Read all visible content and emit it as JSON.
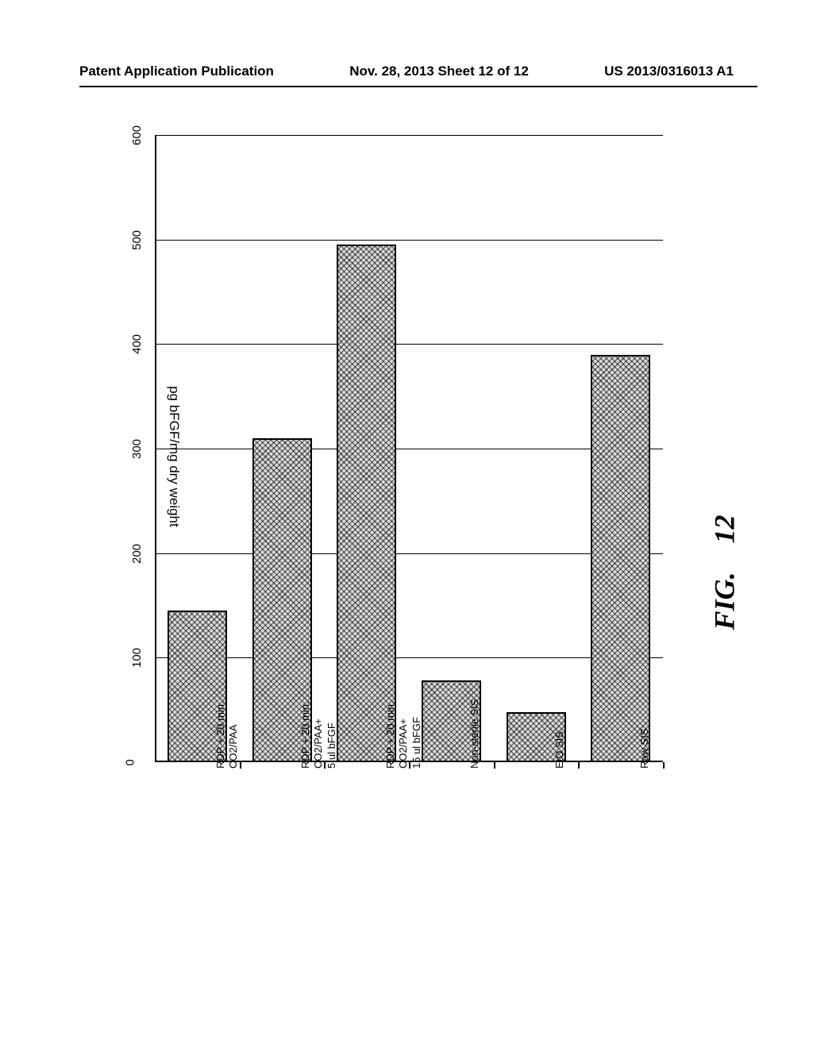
{
  "header": {
    "left": "Patent Application Publication",
    "center": "Nov. 28, 2013  Sheet 12 of 12",
    "right": "US 2013/0316013 A1"
  },
  "chart": {
    "type": "bar",
    "orientation": "horizontal_rotated",
    "y_axis_label": "pg bFGF/mg dry weight",
    "y_min": 0,
    "y_max": 600,
    "y_tick_step": 100,
    "y_ticks": [
      0,
      100,
      200,
      300,
      400,
      500,
      600
    ],
    "categories": [
      {
        "lines": [
          "RDP + 20 min.",
          "CO2/PAA"
        ],
        "value": 145
      },
      {
        "lines": [
          "RDP + 20 min.",
          "CO2/PAA+",
          "5 ul bFGF"
        ],
        "value": 310
      },
      {
        "lines": [
          "RDP + 20 min.",
          "CO2/PAA+",
          "15 ul bFGF"
        ],
        "value": 495
      },
      {
        "lines": [
          "Non-sterile SIS"
        ],
        "value": 78
      },
      {
        "lines": [
          "EtO SIS"
        ],
        "value": 48
      },
      {
        "lines": [
          "Raw SIS"
        ],
        "value": 390
      }
    ],
    "bar_fill_pattern": "crosshatch",
    "bar_border_color": "#000000",
    "grid_color": "#000000",
    "background_color": "#ffffff",
    "axis_label_fontsize": 17,
    "tick_fontsize": 15,
    "category_fontsize": 13
  },
  "figure_label": {
    "prefix": "FIG.",
    "number": "12"
  }
}
